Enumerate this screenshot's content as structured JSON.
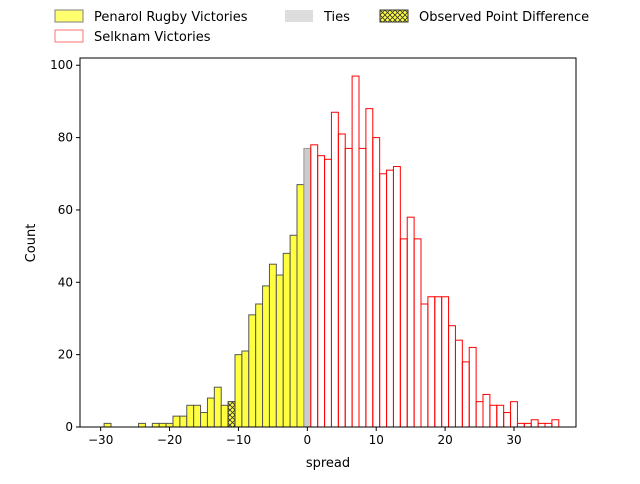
{
  "chart_data": {
    "type": "bar",
    "xlabel": "spread",
    "ylabel": "Count",
    "xlim": [
      -33,
      39
    ],
    "ylim": [
      0,
      102
    ],
    "x_ticks": [
      -30,
      -20,
      -10,
      0,
      10,
      20,
      30
    ],
    "y_ticks": [
      0,
      20,
      40,
      60,
      80,
      100
    ],
    "bin_width": 1,
    "legend": {
      "placement": "top",
      "entries": [
        {
          "label": "Penarol Rugby Victories",
          "style": "yellow-fill"
        },
        {
          "label": "Selknam Victories",
          "style": "red-outline"
        },
        {
          "label": "Ties",
          "style": "gray-fill"
        },
        {
          "label": "Observed Point Difference",
          "style": "hatched-yellow"
        }
      ]
    },
    "colors": {
      "penarol_fill": "#ffff3f",
      "penarol_edge": "#555555",
      "selknam_edge": "#ff0000",
      "ties_fill": "#cccccc",
      "observed_fill": "#ffff3f"
    },
    "series": [
      {
        "name": "Penarol Rugby Victories",
        "x": [
          -29,
          -24,
          -22,
          -21,
          -20,
          -19,
          -18,
          -17,
          -16,
          -15,
          -14,
          -13,
          -12,
          -11,
          -10,
          -9,
          -8,
          -7,
          -6,
          -5,
          -4,
          -3,
          -2,
          -1
        ],
        "values": [
          1,
          1,
          1,
          1,
          1,
          3,
          3,
          6,
          6,
          4,
          8,
          11,
          6,
          6,
          20,
          21,
          31,
          34,
          39,
          45,
          42,
          48,
          53,
          67
        ]
      },
      {
        "name": "Ties",
        "x": [
          0
        ],
        "values": [
          77
        ]
      },
      {
        "name": "Selknam Victories",
        "x": [
          1,
          2,
          3,
          4,
          5,
          6,
          7,
          8,
          9,
          10,
          11,
          12,
          13,
          14,
          15,
          16,
          17,
          18,
          19,
          20,
          21,
          22,
          23,
          24,
          25,
          26,
          27,
          28,
          29,
          30,
          31,
          32,
          33,
          34,
          35,
          36
        ],
        "values": [
          78,
          75,
          74,
          87,
          81,
          77,
          97,
          77,
          88,
          80,
          70,
          71,
          72,
          52,
          58,
          52,
          34,
          36,
          36,
          36,
          28,
          24,
          18,
          22,
          7,
          9,
          6,
          6,
          4,
          7,
          1,
          1,
          2,
          1,
          1,
          2
        ]
      },
      {
        "name": "Observed Point Difference",
        "x": [
          -11
        ],
        "values": [
          7
        ]
      }
    ]
  }
}
